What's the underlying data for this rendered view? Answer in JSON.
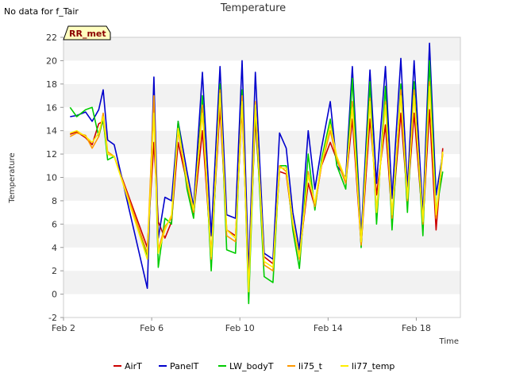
{
  "notice": "No data for f_Tair",
  "badge": "RR_met",
  "chart_data": {
    "type": "line",
    "title": "Temperature",
    "xlabel": "Time",
    "ylabel": "Temperature",
    "xlim": [
      2.0,
      20.0
    ],
    "ylim": [
      -2,
      22
    ],
    "yticks": [
      -2,
      0,
      2,
      4,
      6,
      8,
      10,
      12,
      14,
      16,
      18,
      20,
      22
    ],
    "xticks": [
      {
        "value": 2,
        "label": "Feb 2"
      },
      {
        "value": 6,
        "label": "Feb 6"
      },
      {
        "value": 10,
        "label": "Feb 10"
      },
      {
        "value": 14,
        "label": "Feb 14"
      },
      {
        "value": 18,
        "label": "Feb 18"
      }
    ],
    "grid": "horizontal bands",
    "legend_position": "bottom",
    "series": [
      {
        "name": "AirT",
        "color": "#cc0000",
        "x": [
          2.3,
          2.6,
          3.0,
          3.3,
          3.6,
          3.8,
          4.0,
          4.3,
          5.8,
          6.1,
          6.3,
          6.6,
          6.9,
          7.2,
          7.6,
          7.9,
          8.3,
          8.7,
          9.1,
          9.4,
          9.8,
          10.1,
          10.4,
          10.7,
          11.1,
          11.5,
          11.8,
          12.1,
          12.4,
          12.7,
          13.1,
          13.4,
          13.7,
          14.1,
          14.4,
          14.8,
          15.1,
          15.5,
          15.9,
          16.2,
          16.6,
          16.9,
          17.3,
          17.6,
          17.9,
          18.3,
          18.6,
          18.9,
          19.2
        ],
        "y": [
          13.7,
          13.9,
          13.4,
          12.8,
          14.6,
          14.8,
          12.0,
          11.8,
          4.0,
          13.0,
          6.2,
          4.8,
          6.2,
          13.0,
          9.5,
          6.8,
          14.0,
          3.4,
          16.0,
          5.5,
          5.0,
          16.0,
          1.0,
          15.0,
          3.2,
          2.6,
          10.5,
          10.3,
          6.0,
          3.3,
          9.5,
          7.5,
          11.0,
          13.0,
          11.5,
          9.5,
          15.0,
          4.2,
          15.0,
          8.5,
          14.5,
          6.5,
          15.5,
          8.0,
          15.5,
          6.0,
          15.8,
          5.5,
          12.5
        ]
      },
      {
        "name": "PanelT",
        "color": "#0000cc",
        "x": [
          2.3,
          2.6,
          3.0,
          3.3,
          3.6,
          3.8,
          4.0,
          4.3,
          5.8,
          6.1,
          6.3,
          6.6,
          6.9,
          7.2,
          7.6,
          7.9,
          8.3,
          8.7,
          9.1,
          9.4,
          9.8,
          10.1,
          10.4,
          10.7,
          11.1,
          11.5,
          11.8,
          12.1,
          12.4,
          12.7,
          13.1,
          13.4,
          13.7,
          14.1,
          14.4,
          14.8,
          15.1,
          15.5,
          15.9,
          16.2,
          16.6,
          16.9,
          17.3,
          17.6,
          17.9,
          18.3,
          18.6,
          18.9,
          19.2
        ],
        "y": [
          15.2,
          15.3,
          15.6,
          14.8,
          15.8,
          17.5,
          13.2,
          12.8,
          0.5,
          18.6,
          4.8,
          8.3,
          8.0,
          14.8,
          10.5,
          7.5,
          19.0,
          5.0,
          19.5,
          6.8,
          6.5,
          20.0,
          1.8,
          19.0,
          3.5,
          3.0,
          13.8,
          12.5,
          7.0,
          3.8,
          14.0,
          9.0,
          12.5,
          16.5,
          11.0,
          10.0,
          19.5,
          5.0,
          19.2,
          9.5,
          19.5,
          8.2,
          20.2,
          9.0,
          20.0,
          6.8,
          21.5,
          8.5,
          12.0
        ]
      },
      {
        "name": "LW_bodyT",
        "color": "#00cc00",
        "x": [
          2.3,
          2.6,
          3.0,
          3.3,
          3.6,
          3.8,
          4.0,
          4.3,
          5.8,
          6.1,
          6.3,
          6.6,
          6.9,
          7.2,
          7.6,
          7.9,
          8.3,
          8.7,
          9.1,
          9.4,
          9.8,
          10.1,
          10.4,
          10.7,
          11.1,
          11.5,
          11.8,
          12.1,
          12.4,
          12.7,
          13.1,
          13.4,
          13.7,
          14.1,
          14.4,
          14.8,
          15.1,
          15.5,
          15.9,
          16.2,
          16.6,
          16.9,
          17.3,
          17.6,
          17.9,
          18.3,
          18.6,
          18.9,
          19.2
        ],
        "y": [
          16.0,
          15.2,
          15.8,
          16.0,
          13.5,
          15.0,
          11.5,
          11.8,
          3.2,
          16.5,
          2.3,
          6.5,
          6.0,
          14.8,
          9.0,
          6.5,
          17.0,
          2.0,
          18.0,
          3.8,
          3.5,
          17.5,
          -0.8,
          16.0,
          1.5,
          1.0,
          11.0,
          11.0,
          5.5,
          2.2,
          12.0,
          7.2,
          11.5,
          15.0,
          11.0,
          9.0,
          18.5,
          4.0,
          18.2,
          6.0,
          17.8,
          5.5,
          18.0,
          7.0,
          18.2,
          5.0,
          20.0,
          7.0,
          10.5
        ]
      },
      {
        "name": "li75_t",
        "color": "#ff9900",
        "x": [
          2.3,
          2.6,
          3.0,
          3.3,
          3.6,
          3.8,
          4.0,
          4.3,
          5.8,
          6.1,
          6.3,
          6.6,
          6.9,
          7.2,
          7.6,
          7.9,
          8.3,
          8.7,
          9.1,
          9.4,
          9.8,
          10.1,
          10.4,
          10.7,
          11.1,
          11.5,
          11.8,
          12.1,
          12.4,
          12.7,
          13.1,
          13.4,
          13.7,
          14.1,
          14.4,
          14.8,
          15.1,
          15.5,
          15.9,
          16.2,
          16.6,
          16.9,
          17.3,
          17.6,
          17.9,
          18.3,
          18.6,
          18.9,
          19.2
        ],
        "y": [
          13.5,
          13.8,
          13.6,
          12.5,
          13.5,
          15.5,
          12.2,
          11.8,
          3.5,
          17.0,
          3.8,
          5.8,
          6.5,
          14.0,
          9.5,
          7.0,
          16.2,
          3.0,
          17.5,
          5.0,
          4.5,
          17.0,
          0.5,
          16.5,
          2.5,
          2.0,
          11.0,
          10.5,
          6.0,
          3.0,
          10.5,
          7.5,
          11.0,
          14.0,
          11.5,
          9.5,
          16.5,
          4.2,
          16.8,
          7.0,
          16.5,
          6.5,
          17.5,
          8.0,
          17.5,
          6.0,
          18.2,
          6.5,
          12.0
        ]
      },
      {
        "name": "li77_temp",
        "color": "#ffee00",
        "x": [
          2.3,
          2.6,
          3.0,
          3.3,
          3.6,
          3.8,
          4.0,
          4.3,
          5.8,
          6.1,
          6.3,
          6.6,
          6.9,
          7.2,
          7.6,
          7.9,
          8.3,
          8.7,
          9.1,
          9.4,
          9.8,
          10.1,
          10.4,
          10.7,
          11.1,
          11.5,
          11.8,
          12.1,
          12.4,
          12.7,
          13.1,
          13.4,
          13.7,
          14.1,
          14.4,
          14.8,
          15.1,
          15.5,
          15.9,
          16.2,
          16.6,
          16.9,
          17.3,
          17.6,
          17.9,
          18.3,
          18.6,
          18.9,
          19.2
        ],
        "y": [
          13.8,
          14.0,
          13.5,
          13.0,
          13.8,
          15.2,
          12.0,
          11.8,
          3.0,
          15.5,
          3.5,
          5.5,
          6.8,
          14.2,
          9.8,
          7.2,
          15.5,
          3.2,
          17.2,
          5.5,
          4.8,
          16.5,
          0.2,
          16.2,
          2.8,
          2.3,
          10.8,
          10.8,
          6.2,
          3.2,
          10.2,
          7.8,
          11.2,
          14.5,
          11.8,
          9.8,
          16.0,
          4.5,
          16.5,
          7.0,
          16.2,
          6.8,
          17.0,
          8.2,
          17.0,
          6.2,
          17.8,
          6.8,
          12.2
        ]
      }
    ]
  }
}
